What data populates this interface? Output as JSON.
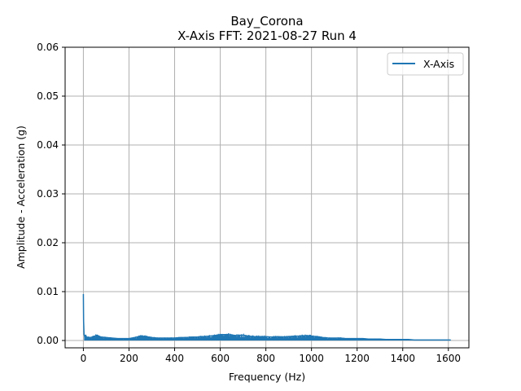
{
  "chart_data": {
    "type": "line",
    "title": "Bay_Corona",
    "subtitle": "X-Axis FFT: 2021-08-27 Run 4",
    "xlabel": "Frequency (Hz)",
    "ylabel": "Amplitude - Acceleration (g)",
    "xlim": [
      -80,
      1690
    ],
    "ylim": [
      -0.0015,
      0.06
    ],
    "xticks": [
      0,
      200,
      400,
      600,
      800,
      1000,
      1200,
      1400,
      1600
    ],
    "yticks": [
      0.0,
      0.01,
      0.02,
      0.03,
      0.04,
      0.05,
      0.06
    ],
    "xtick_labels": [
      "0",
      "200",
      "400",
      "600",
      "800",
      "1000",
      "1200",
      "1400",
      "1600"
    ],
    "ytick_labels": [
      "0.00",
      "0.01",
      "0.02",
      "0.03",
      "0.04",
      "0.05",
      "0.06"
    ],
    "grid": true,
    "legend_position": "top-right",
    "series": [
      {
        "name": "X-Axis",
        "color": "#1f77b4",
        "x": [
          0,
          1,
          3,
          6,
          10,
          15,
          20,
          30,
          40,
          50,
          60,
          70,
          80,
          100,
          125,
          150,
          175,
          200,
          225,
          250,
          275,
          300,
          325,
          350,
          375,
          400,
          425,
          450,
          475,
          500,
          525,
          550,
          575,
          600,
          625,
          650,
          675,
          700,
          725,
          750,
          775,
          800,
          825,
          850,
          875,
          900,
          925,
          950,
          975,
          1000,
          1025,
          1050,
          1075,
          1100,
          1125,
          1150,
          1175,
          1200,
          1225,
          1250,
          1275,
          1300,
          1325,
          1350,
          1375,
          1400,
          1425,
          1450,
          1475,
          1500,
          1525,
          1550,
          1575,
          1600,
          1610
        ],
        "y": [
          0.0095,
          0.004,
          0.0012,
          0.0008,
          0.0011,
          0.0006,
          0.0007,
          0.0006,
          0.0007,
          0.0009,
          0.0011,
          0.0008,
          0.0007,
          0.0006,
          0.0005,
          0.0004,
          0.0004,
          0.0004,
          0.0006,
          0.0009,
          0.0008,
          0.0006,
          0.0005,
          0.0005,
          0.0005,
          0.0005,
          0.0006,
          0.0006,
          0.0007,
          0.0007,
          0.0008,
          0.0009,
          0.001,
          0.0012,
          0.0012,
          0.0011,
          0.001,
          0.0011,
          0.0009,
          0.0008,
          0.0008,
          0.0008,
          0.0007,
          0.0008,
          0.0007,
          0.0008,
          0.0009,
          0.0009,
          0.001,
          0.0009,
          0.0008,
          0.0006,
          0.0005,
          0.0005,
          0.0005,
          0.0004,
          0.0004,
          0.0004,
          0.0004,
          0.0003,
          0.0003,
          0.0003,
          0.0002,
          0.0002,
          0.0002,
          0.0002,
          0.0002,
          0.0001,
          0.0001,
          0.0001,
          0.0001,
          0.0001,
          0.0001,
          0.0001,
          0.0001
        ]
      }
    ]
  }
}
